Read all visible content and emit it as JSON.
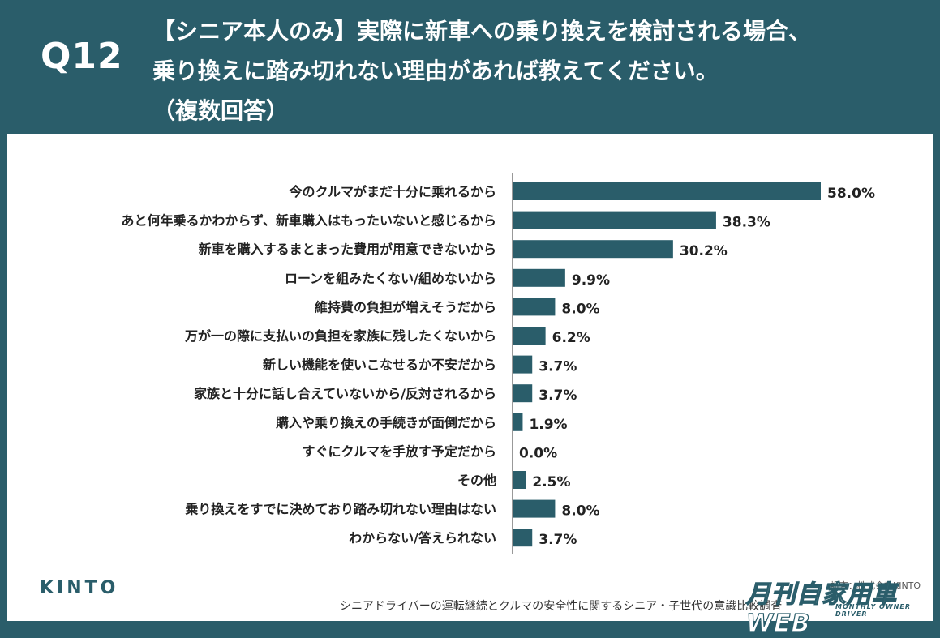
{
  "header": {
    "qnum": "Q12",
    "title_lines": [
      "【シニア本人のみ】実際に新車への乗り換えを検討される場合、",
      "乗り換えに踏み切れない理由があれば教えてください。",
      "（複数回答）"
    ]
  },
  "chart_data": {
    "type": "bar",
    "orientation": "horizontal",
    "unit": "%",
    "categories": [
      "今のクルマがまだ十分に乗れるから",
      "あと何年乗るかわからず、新車購入はもったいないと感じるから",
      "新車を購入するまとまった費用が用意できないから",
      "ローンを組みたくない/組めないから",
      "維持費の負担が増えそうだから",
      "万が一の際に支払いの負担を家族に残したくないから",
      "新しい機能を使いこなせるか不安だから",
      "家族と十分に話し合えていないから/反対されるから",
      "購入や乗り換えの手続きが面倒だから",
      "すぐにクルマを手放す予定だから",
      "その他",
      "乗り換えをすでに決めており踏み切れない理由はない",
      "わからない/答えられない"
    ],
    "values": [
      58.0,
      38.3,
      30.2,
      9.9,
      8.0,
      6.2,
      3.7,
      3.7,
      1.9,
      0.0,
      2.5,
      8.0,
      3.7
    ],
    "value_labels": [
      "58.0%",
      "38.3%",
      "30.2%",
      "9.9%",
      "8.0%",
      "6.2%",
      "3.7%",
      "3.7%",
      "1.9%",
      "0.0%",
      "2.5%",
      "8.0%",
      "3.7%"
    ],
    "xlim": [
      0,
      65
    ],
    "bar_color": "#2a5d6a"
  },
  "footer": {
    "brand": "KINTO",
    "note": "シニアドライバーの運転継続とクルマの安全性に関するシニア・子世代の意識比較調査",
    "logo_main": "月刊自家用車WEB",
    "logo_sub": "MONTHLY OWNER DRIVER",
    "logo_tag": "調査：株式会社KINTO"
  }
}
